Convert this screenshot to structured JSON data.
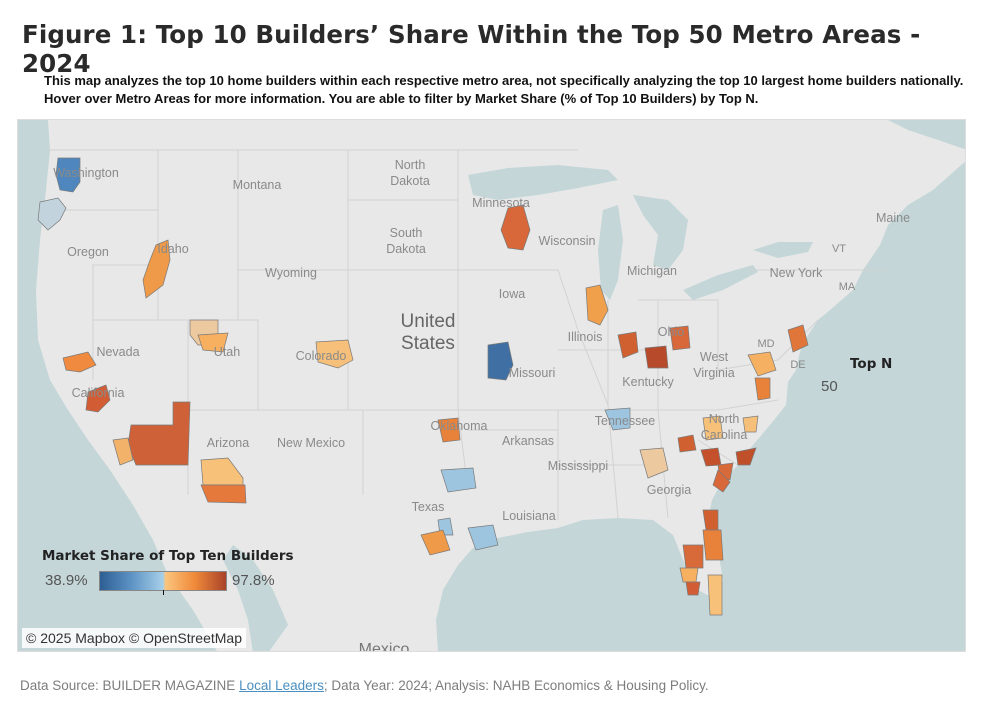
{
  "title": "Figure 1: Top 10 Builders’ Share Within the Top 50 Metro Areas - 2024",
  "subtitle": "This map analyzes the top 10 home builders within each respective metro area, not specifically analyzing the top 10 largest home builders nationally. Hover over Metro Areas for more information. You are able to filter by Market Share (% of Top 10 Builders) by Top N.",
  "map": {
    "country_label": [
      "United",
      "States"
    ],
    "mexico_label": "Mexico",
    "state_labels": [
      "Washington",
      "Montana",
      "North Dakota",
      "Minnesota",
      "Wisconsin",
      "Oregon",
      "Idaho",
      "South Dakota",
      "Wyoming",
      "Iowa",
      "Michigan",
      "Maine",
      "VT",
      "New York",
      "MA",
      "Nevada",
      "Utah",
      "Colorado",
      "Illinois",
      "Ohio",
      "Missouri",
      "Kentucky",
      "West Virginia",
      "MD",
      "DE",
      "California",
      "Oklahoma",
      "Tennessee",
      "North Carolina",
      "Arizona",
      "New Mexico",
      "Arkansas",
      "Mississippi",
      "Georgia",
      "Texas",
      "Louisiana"
    ],
    "attribution": "© 2025 Mapbox © OpenStreetMap",
    "colors": {
      "ocean": "#c4d6d8",
      "land": "#e8e8e8",
      "low": "#2d5e93",
      "mid_low": "#a6cfe9",
      "mid_high": "#fbc57e",
      "high": "#a9432a"
    }
  },
  "legend": {
    "title": "Market Share of Top Ten Builders",
    "min": "38.9%",
    "max": "97.8%"
  },
  "filter": {
    "title": "Top N",
    "value": "50"
  },
  "footer": {
    "prefix": "Data Source: BUILDER MAGAZINE ",
    "link": "Local Leaders",
    "suffix": "; Data Year: 2024; Analysis: NAHB Economics & Housing Policy."
  }
}
